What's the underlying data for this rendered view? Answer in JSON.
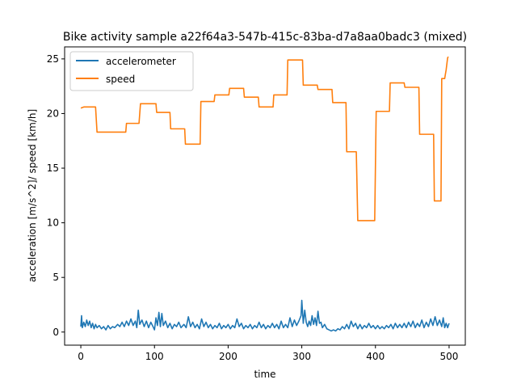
{
  "chart_data": {
    "type": "line",
    "title": "Bike activity sample a22f64a3-547b-415c-83ba-d7a8aa0badc3 (mixed)",
    "xlabel": "time",
    "ylabel": "acceleration [m/s^2]/ speed [km/h]",
    "xlim": [
      -22,
      522
    ],
    "ylim": [
      -1.2,
      26.1
    ],
    "xticks": [
      0,
      100,
      200,
      300,
      400,
      500
    ],
    "yticks": [
      0,
      5,
      10,
      15,
      20,
      25
    ],
    "grid": false,
    "legend_placement": "top-left",
    "series": [
      {
        "name": "accelerometer",
        "color": "#1f77b4",
        "style": "noisy",
        "baseline": 0.55,
        "points": [
          [
            0,
            0.5
          ],
          [
            1,
            1.5
          ],
          [
            2,
            0.4
          ],
          [
            4,
            0.9
          ],
          [
            6,
            0.5
          ],
          [
            8,
            1.1
          ],
          [
            10,
            0.6
          ],
          [
            12,
            1.0
          ],
          [
            14,
            0.4
          ],
          [
            16,
            0.8
          ],
          [
            18,
            0.3
          ],
          [
            20,
            0.7
          ],
          [
            22,
            0.4
          ],
          [
            25,
            0.6
          ],
          [
            28,
            0.3
          ],
          [
            31,
            0.5
          ],
          [
            34,
            0.2
          ],
          [
            37,
            0.6
          ],
          [
            40,
            0.3
          ],
          [
            43,
            0.5
          ],
          [
            46,
            0.4
          ],
          [
            50,
            0.7
          ],
          [
            53,
            0.5
          ],
          [
            56,
            0.9
          ],
          [
            59,
            0.5
          ],
          [
            62,
            1.0
          ],
          [
            65,
            0.6
          ],
          [
            68,
            1.2
          ],
          [
            71,
            0.6
          ],
          [
            74,
            1.0
          ],
          [
            76,
            0.4
          ],
          [
            78,
            2.0
          ],
          [
            80,
            0.7
          ],
          [
            83,
            1.1
          ],
          [
            86,
            0.5
          ],
          [
            89,
            1.0
          ],
          [
            92,
            0.4
          ],
          [
            95,
            0.9
          ],
          [
            98,
            0.5
          ],
          [
            100,
            0.2
          ],
          [
            102,
            1.3
          ],
          [
            104,
            0.6
          ],
          [
            106,
            1.8
          ],
          [
            108,
            0.5
          ],
          [
            110,
            1.7
          ],
          [
            112,
            0.6
          ],
          [
            115,
            1.0
          ],
          [
            118,
            0.4
          ],
          [
            121,
            0.8
          ],
          [
            124,
            0.3
          ],
          [
            127,
            0.7
          ],
          [
            130,
            0.5
          ],
          [
            133,
            0.9
          ],
          [
            136,
            0.4
          ],
          [
            140,
            0.7
          ],
          [
            143,
            0.4
          ],
          [
            146,
            1.4
          ],
          [
            149,
            0.5
          ],
          [
            152,
            0.9
          ],
          [
            155,
            0.4
          ],
          [
            158,
            0.7
          ],
          [
            161,
            0.3
          ],
          [
            164,
            1.2
          ],
          [
            167,
            0.5
          ],
          [
            170,
            0.9
          ],
          [
            173,
            0.4
          ],
          [
            176,
            0.7
          ],
          [
            179,
            0.3
          ],
          [
            182,
            0.6
          ],
          [
            185,
            0.4
          ],
          [
            188,
            0.8
          ],
          [
            191,
            0.3
          ],
          [
            194,
            0.6
          ],
          [
            197,
            0.4
          ],
          [
            200,
            0.7
          ],
          [
            203,
            0.3
          ],
          [
            206,
            0.6
          ],
          [
            209,
            0.4
          ],
          [
            212,
            1.2
          ],
          [
            215,
            0.5
          ],
          [
            218,
            0.8
          ],
          [
            221,
            0.3
          ],
          [
            224,
            0.6
          ],
          [
            227,
            0.4
          ],
          [
            230,
            0.7
          ],
          [
            233,
            0.3
          ],
          [
            236,
            0.6
          ],
          [
            239,
            0.4
          ],
          [
            242,
            0.9
          ],
          [
            245,
            0.4
          ],
          [
            248,
            0.7
          ],
          [
            251,
            0.3
          ],
          [
            254,
            0.6
          ],
          [
            257,
            0.4
          ],
          [
            260,
            0.8
          ],
          [
            263,
            0.4
          ],
          [
            266,
            0.7
          ],
          [
            269,
            0.3
          ],
          [
            272,
            1.0
          ],
          [
            275,
            0.4
          ],
          [
            278,
            0.7
          ],
          [
            281,
            0.4
          ],
          [
            284,
            1.3
          ],
          [
            287,
            0.5
          ],
          [
            290,
            1.1
          ],
          [
            293,
            0.6
          ],
          [
            296,
            1.0
          ],
          [
            299,
            1.5
          ],
          [
            300,
            2.9
          ],
          [
            302,
            0.8
          ],
          [
            304,
            2.0
          ],
          [
            306,
            0.9
          ],
          [
            308,
            0.5
          ],
          [
            310,
            1.0
          ],
          [
            312,
            0.6
          ],
          [
            314,
            1.5
          ],
          [
            316,
            0.7
          ],
          [
            318,
            1.3
          ],
          [
            320,
            0.6
          ],
          [
            322,
            1.9
          ],
          [
            324,
            0.8
          ],
          [
            326,
            0.9
          ],
          [
            328,
            0.4
          ],
          [
            331,
            0.7
          ],
          [
            334,
            0.3
          ],
          [
            337,
            0.2
          ],
          [
            340,
            0.1
          ],
          [
            343,
            0.2
          ],
          [
            346,
            0.1
          ],
          [
            349,
            0.3
          ],
          [
            352,
            0.2
          ],
          [
            355,
            0.5
          ],
          [
            358,
            0.3
          ],
          [
            361,
            0.7
          ],
          [
            364,
            0.3
          ],
          [
            367,
            1.0
          ],
          [
            370,
            0.5
          ],
          [
            373,
            0.8
          ],
          [
            376,
            0.3
          ],
          [
            379,
            0.7
          ],
          [
            382,
            0.3
          ],
          [
            385,
            0.6
          ],
          [
            388,
            0.4
          ],
          [
            391,
            0.8
          ],
          [
            394,
            0.4
          ],
          [
            397,
            0.6
          ],
          [
            400,
            0.3
          ],
          [
            403,
            0.6
          ],
          [
            406,
            0.3
          ],
          [
            409,
            0.5
          ],
          [
            412,
            0.3
          ],
          [
            415,
            0.6
          ],
          [
            418,
            0.4
          ],
          [
            421,
            0.7
          ],
          [
            424,
            0.3
          ],
          [
            427,
            0.8
          ],
          [
            430,
            0.4
          ],
          [
            433,
            0.7
          ],
          [
            436,
            0.4
          ],
          [
            439,
            0.8
          ],
          [
            442,
            0.4
          ],
          [
            445,
            0.9
          ],
          [
            448,
            0.5
          ],
          [
            451,
            1.0
          ],
          [
            454,
            0.4
          ],
          [
            457,
            0.8
          ],
          [
            460,
            0.5
          ],
          [
            463,
            1.1
          ],
          [
            466,
            0.4
          ],
          [
            469,
            0.9
          ],
          [
            472,
            0.5
          ],
          [
            475,
            1.2
          ],
          [
            478,
            0.6
          ],
          [
            481,
            1.4
          ],
          [
            484,
            0.6
          ],
          [
            487,
            1.1
          ],
          [
            490,
            0.5
          ],
          [
            492,
            1.3
          ],
          [
            494,
            0.4
          ],
          [
            496,
            0.8
          ],
          [
            498,
            0.4
          ],
          [
            500,
            0.8
          ]
        ]
      },
      {
        "name": "speed",
        "color": "#ff7f0e",
        "style": "step",
        "points": [
          [
            0,
            20.5
          ],
          [
            4,
            20.6
          ],
          [
            20,
            20.6
          ],
          [
            22,
            18.3
          ],
          [
            61,
            18.3
          ],
          [
            62,
            19.1
          ],
          [
            79,
            19.1
          ],
          [
            81,
            20.9
          ],
          [
            102,
            20.9
          ],
          [
            103,
            20.1
          ],
          [
            121,
            20.1
          ],
          [
            122,
            18.6
          ],
          [
            141,
            18.6
          ],
          [
            142,
            17.2
          ],
          [
            162,
            17.2
          ],
          [
            163,
            21.1
          ],
          [
            181,
            21.1
          ],
          [
            182,
            21.7
          ],
          [
            201,
            21.7
          ],
          [
            202,
            22.3
          ],
          [
            221,
            22.3
          ],
          [
            222,
            21.5
          ],
          [
            241,
            21.5
          ],
          [
            242,
            20.6
          ],
          [
            261,
            20.6
          ],
          [
            262,
            21.7
          ],
          [
            280,
            21.7
          ],
          [
            281,
            24.9
          ],
          [
            301,
            24.9
          ],
          [
            302,
            22.6
          ],
          [
            321,
            22.6
          ],
          [
            322,
            22.2
          ],
          [
            341,
            22.2
          ],
          [
            342,
            21.0
          ],
          [
            360,
            21.0
          ],
          [
            361,
            16.5
          ],
          [
            374,
            16.5
          ],
          [
            376,
            10.2
          ],
          [
            399,
            10.2
          ],
          [
            401,
            20.2
          ],
          [
            419,
            20.2
          ],
          [
            420,
            22.8
          ],
          [
            439,
            22.8
          ],
          [
            440,
            22.4
          ],
          [
            459,
            22.4
          ],
          [
            460,
            18.1
          ],
          [
            479,
            18.1
          ],
          [
            480,
            12.0
          ],
          [
            489,
            12.0
          ],
          [
            490,
            23.2
          ],
          [
            494,
            23.2
          ],
          [
            495,
            23.6
          ],
          [
            496,
            24.0
          ],
          [
            498,
            25.1
          ],
          [
            499,
            25.2
          ]
        ]
      }
    ]
  }
}
